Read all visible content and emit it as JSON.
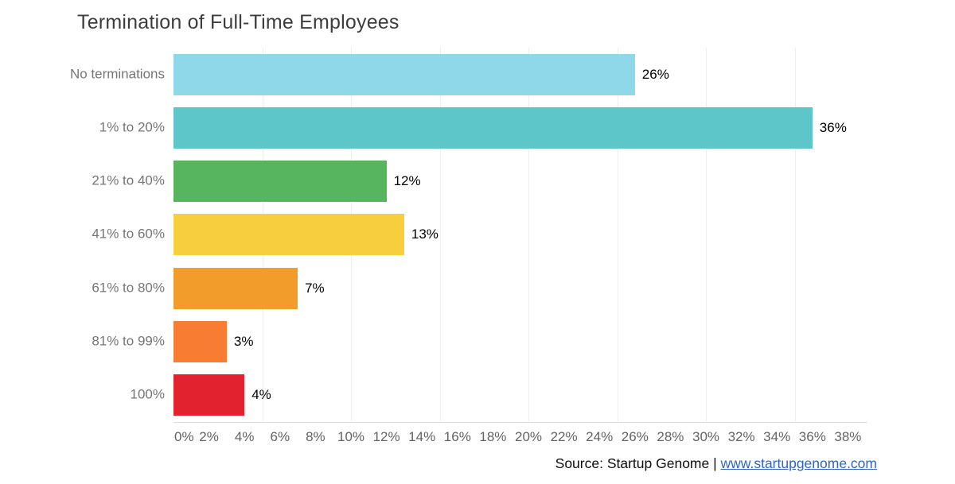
{
  "title": "Termination of Full-Time Employees",
  "source": {
    "prefix": "Source: Startup Genome | ",
    "link_text": "www.startupgenome.com"
  },
  "colors": {
    "title_text": "#3d3d3d",
    "category_text": "#757575",
    "tick_text": "#636363",
    "value_text": "#000000",
    "link_blue": "#2e66c4",
    "gridline": "#efefef",
    "axis_line": "#dcdcdc"
  },
  "chart_data": {
    "type": "bar",
    "orientation": "horizontal",
    "title": "Termination of Full-Time Employees",
    "categories": [
      "No terminations",
      "1% to 20%",
      "21% to 40%",
      "41% to 60%",
      "61% to 80%",
      "81% to 99%",
      "100%"
    ],
    "values": [
      26,
      36,
      12,
      13,
      7,
      3,
      4
    ],
    "value_labels": [
      "26%",
      "36%",
      "12%",
      "13%",
      "7%",
      "3%",
      "4%"
    ],
    "bar_colors": [
      "#8ED8E9",
      "#5DC6C8",
      "#57B55F",
      "#F6CE3E",
      "#F29C2B",
      "#F87D33",
      "#E3222F"
    ],
    "x_ticks": [
      "0%",
      "2%",
      "4%",
      "6%",
      "8%",
      "10%",
      "12%",
      "14%",
      "16%",
      "18%",
      "20%",
      "22%",
      "24%",
      "26%",
      "28%",
      "30%",
      "32%",
      "34%",
      "36%",
      "38%"
    ],
    "xlabel": "",
    "ylabel": "",
    "xlim": [
      0,
      39
    ],
    "grid": true,
    "gridline_every_pct": 5,
    "gridline_max_pct": 35,
    "legend": false
  }
}
